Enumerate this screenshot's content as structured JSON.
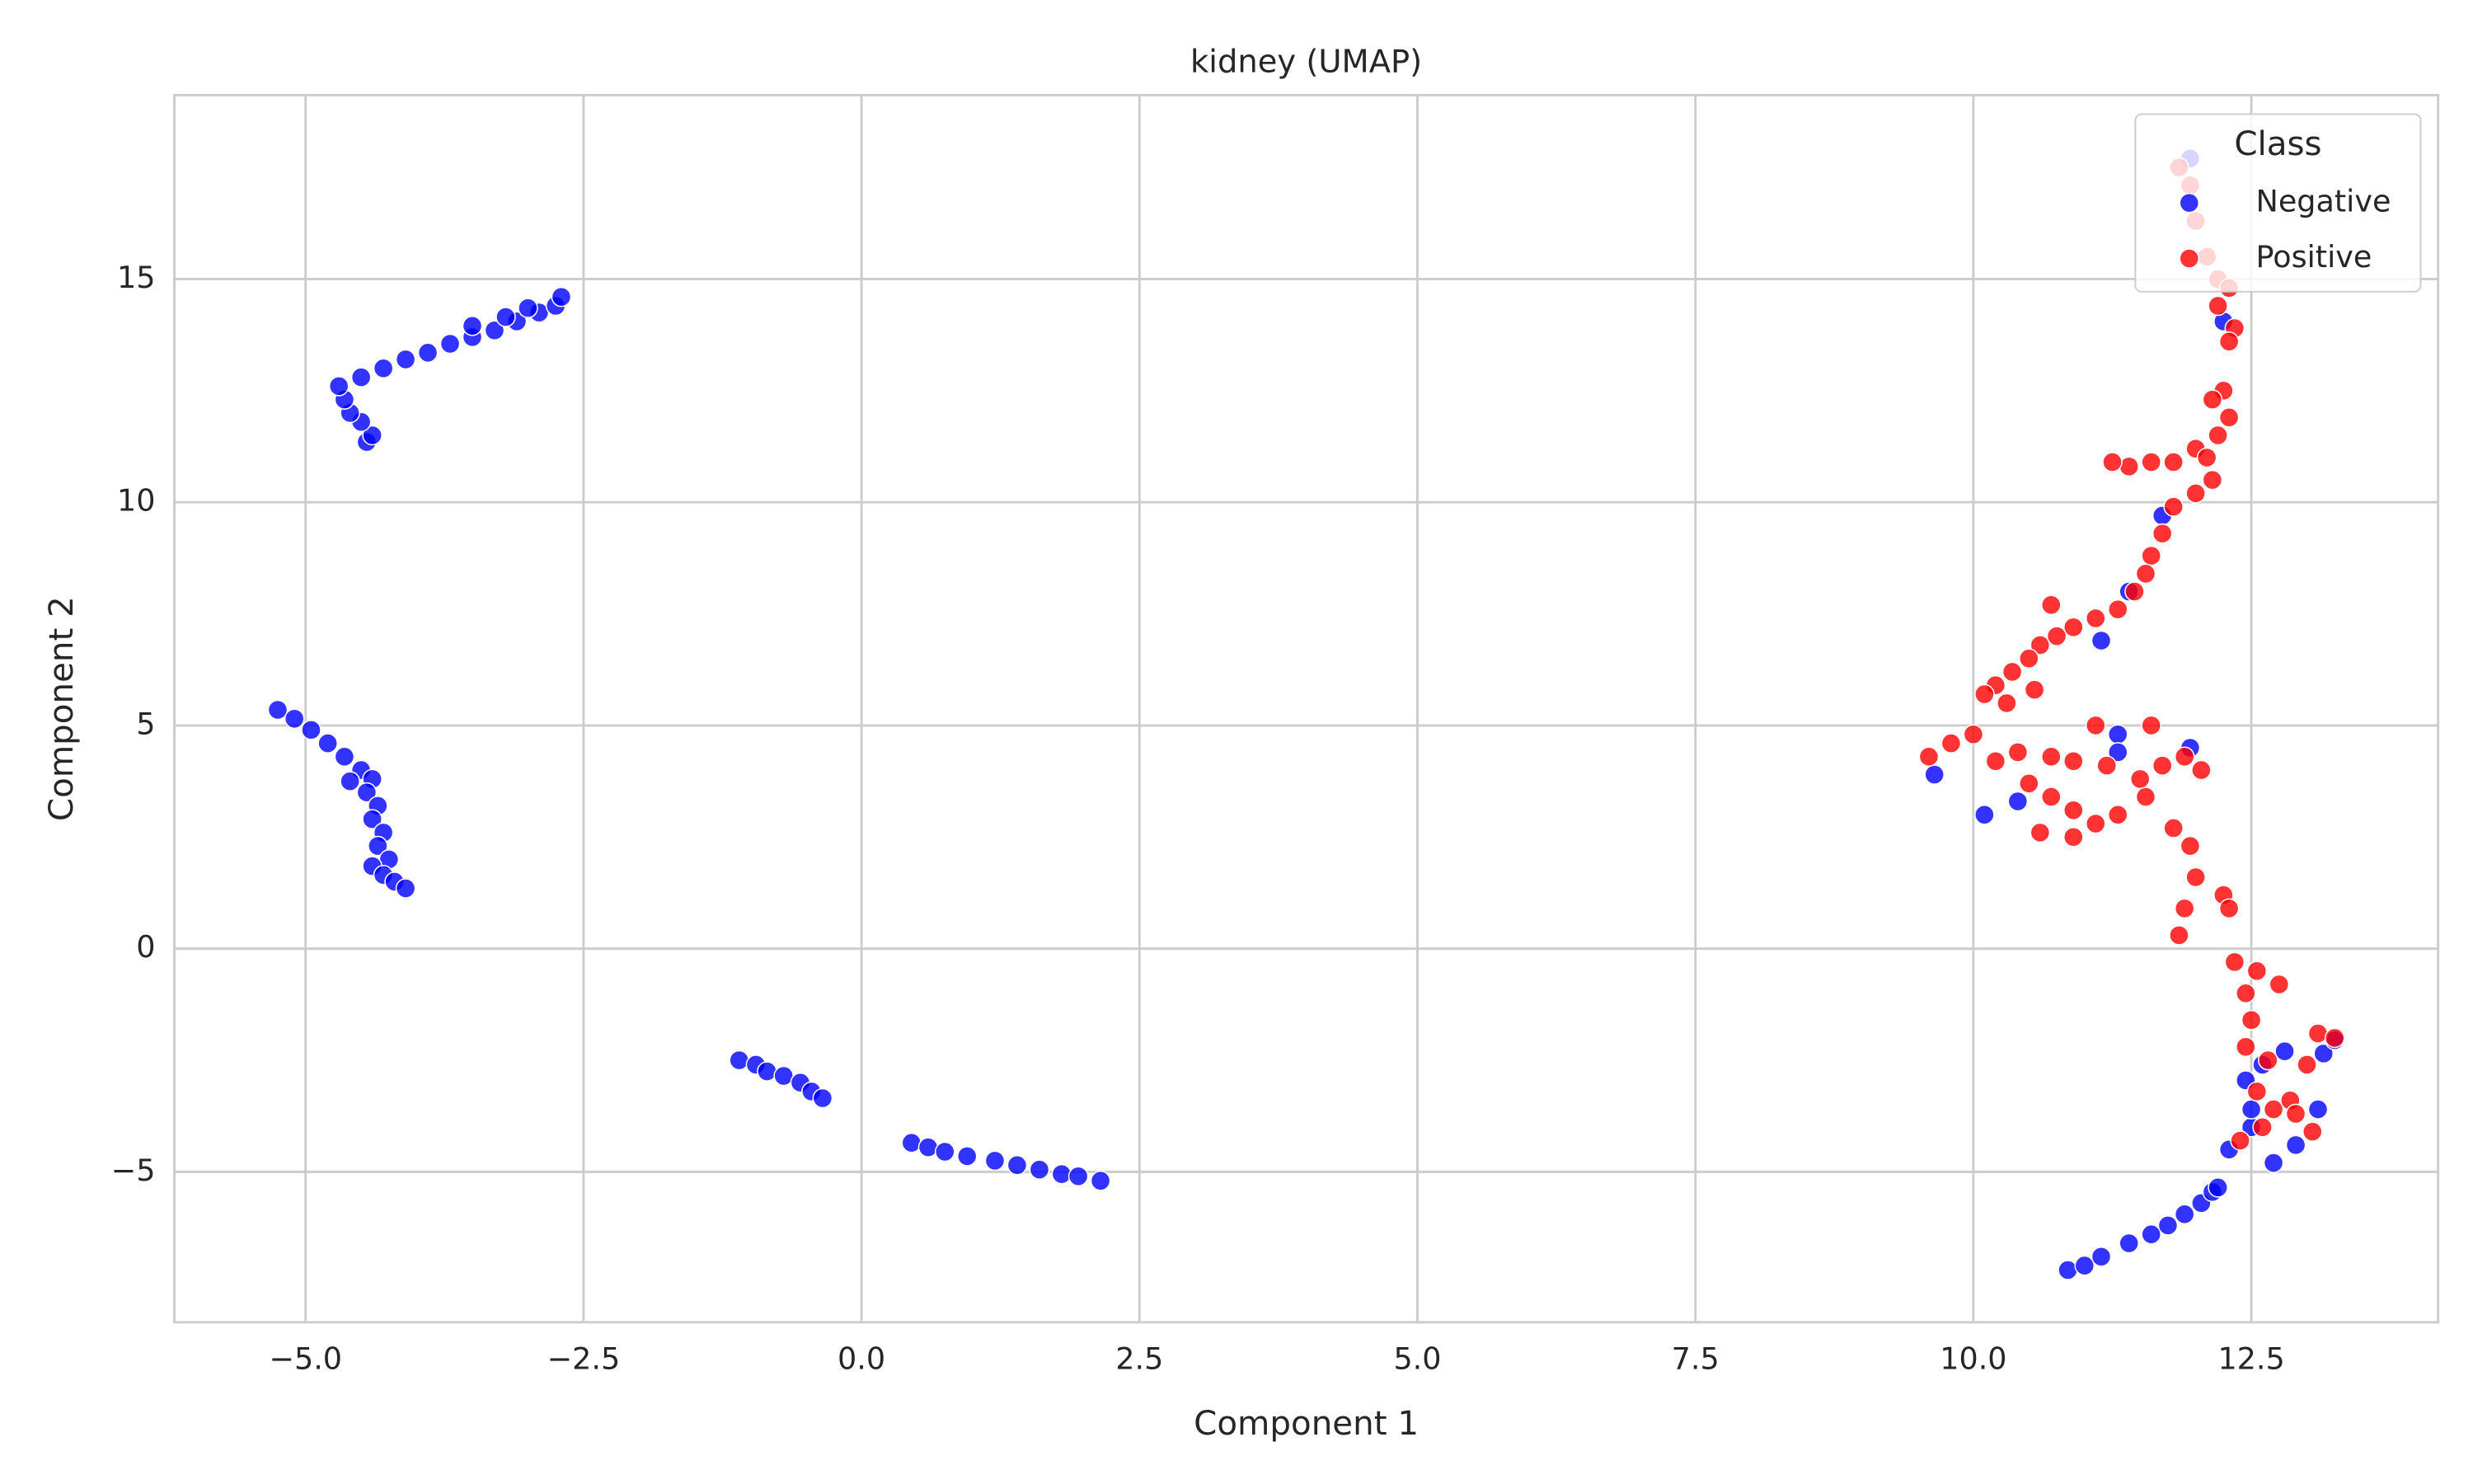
{
  "chart_data": {
    "type": "scatter",
    "title": "kidney (UMAP)",
    "x_label": "Component 1",
    "y_label": "Component 2",
    "xlim": [
      -6.18,
      14.18
    ],
    "ylim": [
      -8.37,
      19.12
    ],
    "xticks": [
      {
        "value": -5,
        "label": "−5.0"
      },
      {
        "value": -2.5,
        "label": "−2.5"
      },
      {
        "value": 0,
        "label": "0.0"
      },
      2.5,
      {
        "value": 5,
        "label": "5.0"
      },
      7.5,
      {
        "value": 10,
        "label": "10.0"
      },
      12.5
    ],
    "yticks": [
      {
        "value": -5,
        "label": "−5"
      },
      0,
      5,
      10,
      15
    ],
    "grid": true,
    "legend_title": "Class",
    "legend_position": "upper-right",
    "series": [
      {
        "name": "Negative",
        "color": "#0000ff",
        "x": [
          -4.45,
          -4.4,
          -4.5,
          -4.6,
          -4.65,
          -4.7,
          -4.5,
          -4.3,
          -4.1,
          -3.9,
          -3.7,
          -3.5,
          -3.3,
          -3.1,
          -2.9,
          -2.75,
          -2.7,
          -3.0,
          -3.5,
          -3.2,
          -5.25,
          -5.1,
          -4.95,
          -4.8,
          -4.65,
          -4.5,
          -4.4,
          -4.6,
          -4.45,
          -4.35,
          -4.4,
          -4.3,
          -4.35,
          -4.25,
          -4.4,
          -4.3,
          -4.2,
          -4.1,
          -1.1,
          -0.95,
          -0.85,
          -0.7,
          -0.55,
          -0.45,
          -0.35,
          0.45,
          0.6,
          0.75,
          0.95,
          1.2,
          1.4,
          1.6,
          1.8,
          1.95,
          2.15,
          10.85,
          11.0,
          11.15,
          11.4,
          11.6,
          11.75,
          11.9,
          12.05,
          12.15,
          12.2,
          12.3,
          12.5,
          12.5,
          12.7,
          12.9,
          13.1,
          12.6,
          12.8,
          13.15,
          13.25,
          12.45,
          12.25,
          11.95,
          11.95,
          11.3,
          11.3,
          10.4,
          10.1,
          11.15,
          11.4,
          11.7,
          9.65
        ],
        "values": [
          11.35,
          11.5,
          11.8,
          12.0,
          12.3,
          12.6,
          12.8,
          13.0,
          13.2,
          13.35,
          13.55,
          13.7,
          13.85,
          14.05,
          14.25,
          14.4,
          14.6,
          14.35,
          13.95,
          14.15,
          5.35,
          5.15,
          4.9,
          4.6,
          4.3,
          4.0,
          3.8,
          3.75,
          3.5,
          3.2,
          2.9,
          2.6,
          2.3,
          2.0,
          1.85,
          1.65,
          1.5,
          1.35,
          -2.5,
          -2.6,
          -2.75,
          -2.85,
          -3.0,
          -3.2,
          -3.35,
          -4.35,
          -4.45,
          -4.55,
          -4.65,
          -4.75,
          -4.85,
          -4.95,
          -5.05,
          -5.1,
          -5.2,
          -7.2,
          -7.1,
          -6.9,
          -6.6,
          -6.4,
          -6.2,
          -5.95,
          -5.7,
          -5.45,
          -5.35,
          -4.5,
          -4.0,
          -3.6,
          -4.8,
          -4.4,
          -3.6,
          -2.6,
          -2.3,
          -2.35,
          -2.05,
          -2.95,
          14.05,
          17.7,
          4.5,
          4.8,
          4.4,
          3.3,
          3.0,
          6.9,
          8.0,
          9.7,
          3.9
        ]
      },
      {
        "name": "Positive",
        "color": "#ff0000",
        "x": [
          11.85,
          11.95,
          12.0,
          12.1,
          12.2,
          12.3,
          12.2,
          12.35,
          12.3,
          12.25,
          12.15,
          12.3,
          12.2,
          12.0,
          12.1,
          11.8,
          11.6,
          11.4,
          11.25,
          12.15,
          12.0,
          11.8,
          11.7,
          11.6,
          11.55,
          11.45,
          11.3,
          11.1,
          10.9,
          10.75,
          10.6,
          10.5,
          10.35,
          10.2,
          10.1,
          10.55,
          10.3,
          10.7,
          9.6,
          9.8,
          10.0,
          10.2,
          10.4,
          10.7,
          10.9,
          11.2,
          11.5,
          11.7,
          11.9,
          12.05,
          11.6,
          11.1,
          10.5,
          10.7,
          10.9,
          11.1,
          10.6,
          10.9,
          11.3,
          11.55,
          11.8,
          11.95,
          12.0,
          11.9,
          12.25,
          12.3,
          11.85,
          12.35,
          12.55,
          12.45,
          12.75,
          12.5,
          12.45,
          12.65,
          13.0,
          13.1,
          13.25,
          12.55,
          12.7,
          12.85,
          13.05,
          12.4,
          12.6,
          12.9
        ],
        "values": [
          17.5,
          17.1,
          16.3,
          15.5,
          15.0,
          14.8,
          14.4,
          13.9,
          13.6,
          12.5,
          12.3,
          11.9,
          11.5,
          11.2,
          11.0,
          10.9,
          10.9,
          10.8,
          10.9,
          10.5,
          10.2,
          9.9,
          9.3,
          8.8,
          8.4,
          8.0,
          7.6,
          7.4,
          7.2,
          7.0,
          6.8,
          6.5,
          6.2,
          5.9,
          5.7,
          5.8,
          5.5,
          7.7,
          4.3,
          4.6,
          4.8,
          4.2,
          4.4,
          4.3,
          4.2,
          4.1,
          3.8,
          4.1,
          4.3,
          4.0,
          5.0,
          5.0,
          3.7,
          3.4,
          3.1,
          2.8,
          2.6,
          2.5,
          3.0,
          3.4,
          2.7,
          2.3,
          1.6,
          0.9,
          1.2,
          0.9,
          0.3,
          -0.3,
          -0.5,
          -1.0,
          -0.8,
          -1.6,
          -2.2,
          -2.5,
          -2.6,
          -1.9,
          -2.0,
          -3.2,
          -3.6,
          -3.4,
          -4.1,
          -4.3,
          -4.0,
          -3.7
        ]
      }
    ]
  }
}
